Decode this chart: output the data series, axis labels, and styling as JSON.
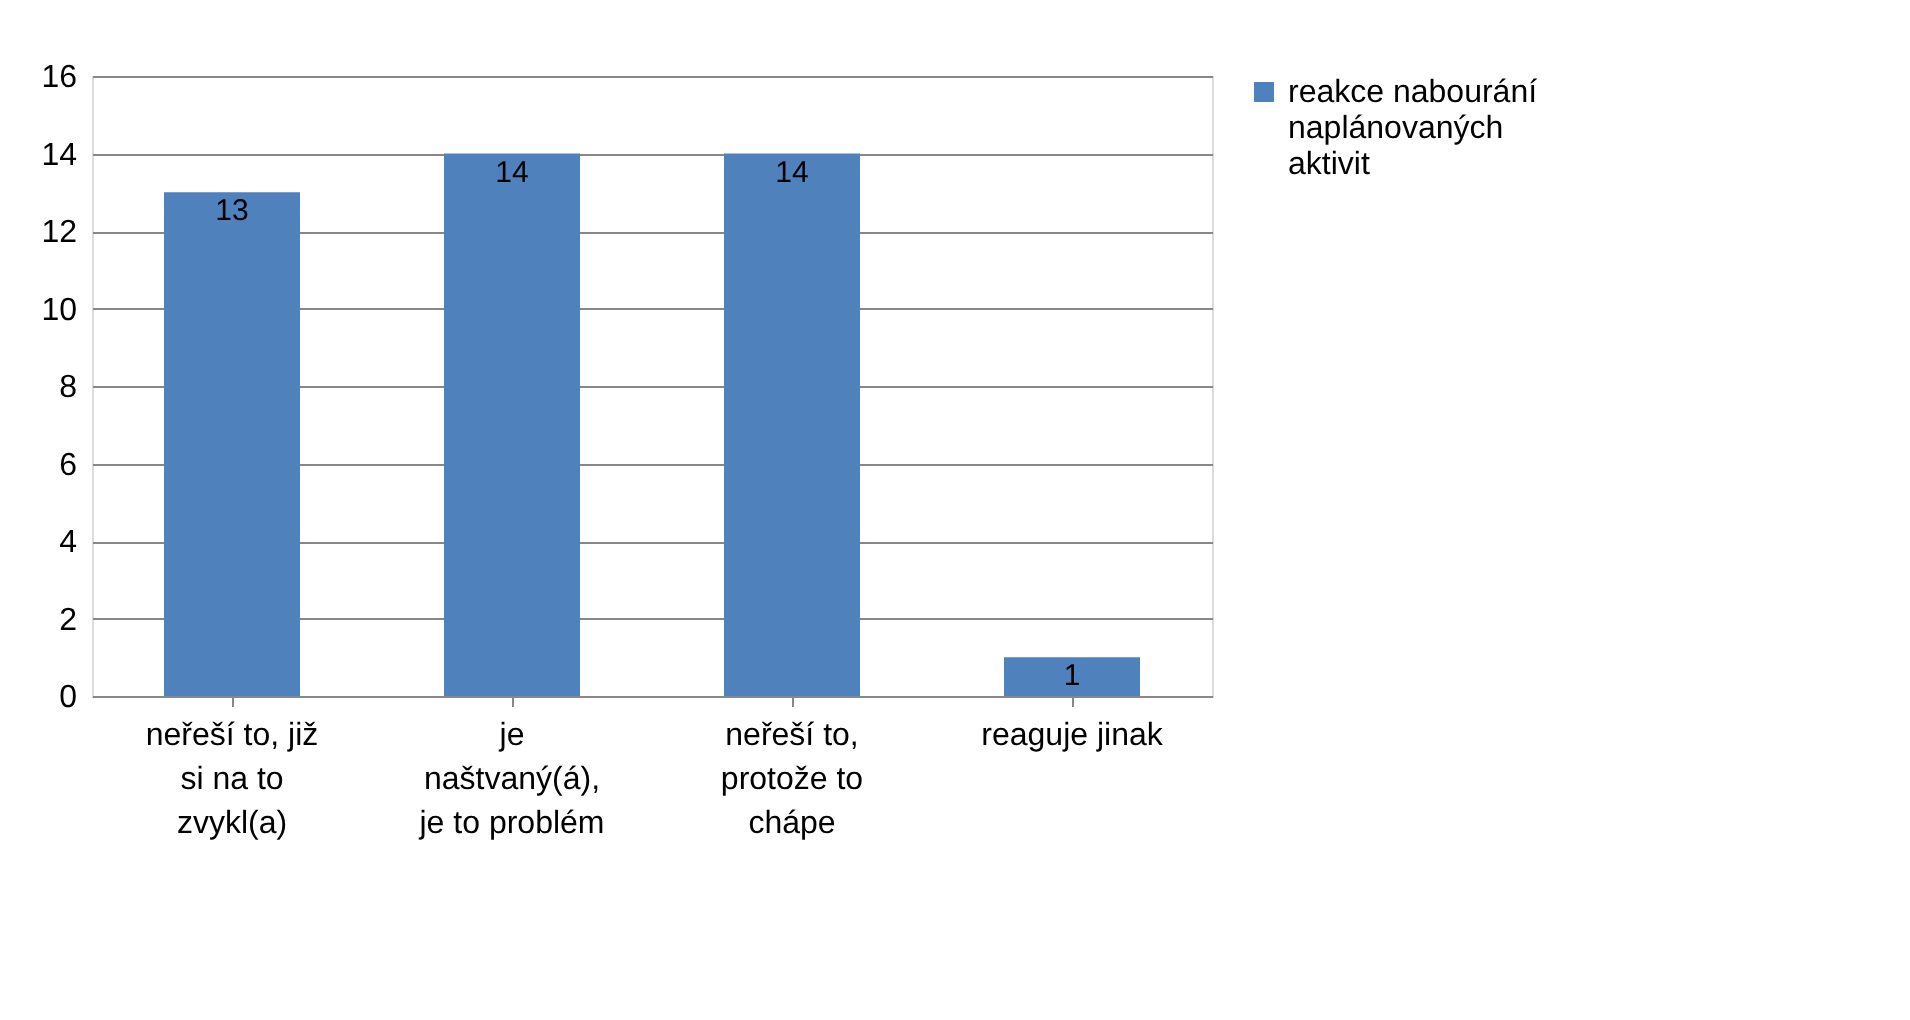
{
  "chart_data": {
    "type": "bar",
    "categories": [
      "neřeší to, již si na to zvykl(a)",
      "je naštvaný(á), je to problém",
      "neřeší to, protože to chápe",
      "reaguje jinak"
    ],
    "series": [
      {
        "name": "reakce nabourání naplánovaných aktivit",
        "color": "#4f81bd",
        "values": [
          13,
          14,
          14,
          1
        ]
      }
    ],
    "ylim": [
      0,
      16
    ],
    "yticks": [
      0,
      2,
      4,
      6,
      8,
      10,
      12,
      14,
      16
    ],
    "grid": "y",
    "legend": "right",
    "data_labels": true
  }
}
